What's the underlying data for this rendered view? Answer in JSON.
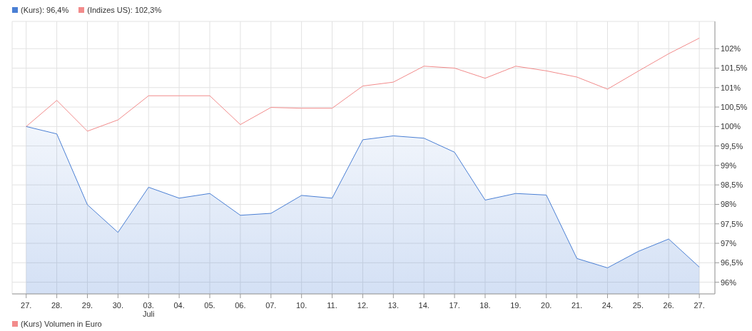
{
  "chart_data": {
    "type": "line",
    "categories": [
      "27.",
      "28.",
      "29.",
      "30.",
      "03.\nJuli",
      "04.",
      "05.",
      "06.",
      "07.",
      "10.",
      "11.",
      "12.",
      "13.",
      "14.",
      "17.",
      "18.",
      "19.",
      "20.",
      "21.",
      "24.",
      "25.",
      "26.",
      "27."
    ],
    "series": [
      {
        "name": "(Kurs): 96,4%",
        "type": "area",
        "color": "#4a7fd4",
        "values": [
          100.0,
          99.81,
          97.99,
          97.28,
          98.44,
          98.16,
          98.28,
          97.72,
          97.77,
          98.23,
          98.16,
          99.66,
          99.76,
          99.7,
          99.34,
          98.11,
          98.28,
          98.24,
          96.61,
          96.37,
          96.79,
          97.11,
          96.39
        ]
      },
      {
        "name": "(Indizes US): 102,3%",
        "color": "#f28b8b",
        "values": [
          100.0,
          100.67,
          99.88,
          100.17,
          100.79,
          100.79,
          100.79,
          100.05,
          100.49,
          100.47,
          100.47,
          101.04,
          101.14,
          101.55,
          101.5,
          101.24,
          101.55,
          101.43,
          101.27,
          100.96,
          101.42,
          101.87,
          102.27
        ]
      }
    ],
    "ylim": [
      95.7,
      102.7
    ],
    "yticks": [
      {
        "value": 96,
        "label": "96%"
      },
      {
        "value": 96.5,
        "label": "96,5%"
      },
      {
        "value": 97,
        "label": "97%"
      },
      {
        "value": 97.5,
        "label": "97,5%"
      },
      {
        "value": 98,
        "label": "98%"
      },
      {
        "value": 98.5,
        "label": "98,5%"
      },
      {
        "value": 99,
        "label": "99%"
      },
      {
        "value": 99.5,
        "label": "99,5%"
      },
      {
        "value": 100,
        "label": "100%"
      },
      {
        "value": 100.5,
        "label": "100,5%"
      },
      {
        "value": 101,
        "label": "101%"
      },
      {
        "value": 101.5,
        "label": "101,5%"
      },
      {
        "value": 102,
        "label": "102%"
      }
    ],
    "grid": true,
    "legend": "top left",
    "marker": "none",
    "annotations": [
      "(Kurs) Volumen in Euro"
    ]
  }
}
